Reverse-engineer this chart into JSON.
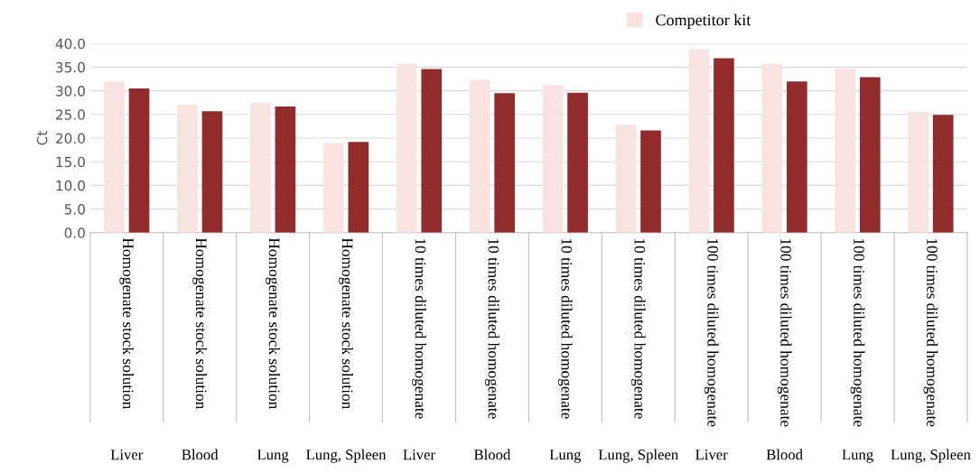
{
  "chart_data": {
    "type": "bar",
    "ylabel": "Ct",
    "categories": [
      "Homogenate stock solution",
      "Homogenate stock solution",
      "Homogenate stock solution",
      "Homogenate stock solution",
      "10 times diluted homogenate",
      "10 times diluted homogenate",
      "10 times diluted homogenate",
      "10 times diluted homogenate",
      "100 times diluted homogenate",
      "100 times diluted homogenate",
      "100 times diluted homogenate",
      "100 times diluted homogenate"
    ],
    "annotations": [
      "Liver",
      "Blood",
      "Lung",
      "Lung, Spleen",
      "Liver",
      "Blood",
      "Lung",
      "Lung, Spleen",
      "Liver",
      "Blood",
      "Lung",
      "Lung, Spleen"
    ],
    "series": [
      {
        "name": "Competitor kit",
        "color": "#f9e3e1",
        "values": [
          32.0,
          27.0,
          27.5,
          19.0,
          35.7,
          32.3,
          31.2,
          22.8,
          38.8,
          35.7,
          34.7,
          25.6
        ]
      },
      {
        "color": "#922b2b",
        "values": [
          30.5,
          25.7,
          26.7,
          19.2,
          34.6,
          29.5,
          29.6,
          21.6,
          36.9,
          32.0,
          32.9,
          24.9
        ]
      }
    ],
    "ylim": [
      0,
      40
    ],
    "yticks": [
      {
        "value": 0,
        "label": "0.0"
      },
      {
        "value": 5,
        "label": "5.0"
      },
      {
        "value": 10,
        "label": "10.0"
      },
      {
        "value": 15,
        "label": "15.0"
      },
      {
        "value": 20,
        "label": "20.0"
      },
      {
        "value": 25,
        "label": "25.0"
      },
      {
        "value": 30,
        "label": "30.0"
      },
      {
        "value": 35,
        "label": "35.0"
      },
      {
        "value": 40,
        "label": "40.0"
      }
    ],
    "grid": "y",
    "legend": "top right"
  }
}
